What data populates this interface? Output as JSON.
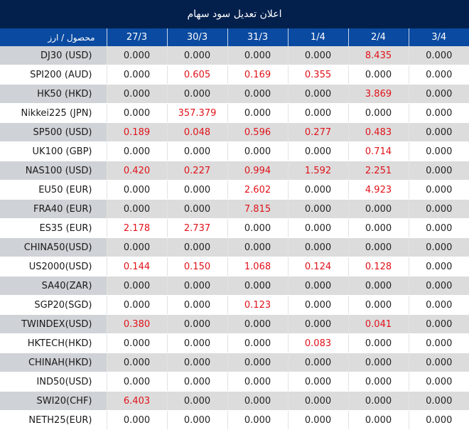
{
  "title": "اعلان تعدیل سود سهام",
  "colors": {
    "title_bg": "#03204d",
    "header_bg": "#0a4aa0",
    "highlight": "#e0121a"
  },
  "columns": [
    "محصول / ارز",
    "27/3",
    "30/3",
    "31/3",
    "1/4",
    "2/4",
    "3/4"
  ],
  "rows": [
    {
      "product": "DJ30 (USD)",
      "values": [
        "0.000",
        "0.000",
        "0.000",
        "0.000",
        "8.435",
        "0.000"
      ]
    },
    {
      "product": "SPI200 (AUD)",
      "values": [
        "0.000",
        "0.605",
        "0.169",
        "0.355",
        "0.000",
        "0.000"
      ]
    },
    {
      "product": "HK50 (HKD)",
      "values": [
        "0.000",
        "0.000",
        "0.000",
        "0.000",
        "3.869",
        "0.000"
      ]
    },
    {
      "product": "Nikkei225 (JPN)",
      "values": [
        "0.000",
        "357.379",
        "0.000",
        "0.000",
        "0.000",
        "0.000"
      ]
    },
    {
      "product": "SP500 (USD)",
      "values": [
        "0.189",
        "0.048",
        "0.596",
        "0.277",
        "0.483",
        "0.000"
      ]
    },
    {
      "product": "UK100 (GBP)",
      "values": [
        "0.000",
        "0.000",
        "0.000",
        "0.000",
        "0.714",
        "0.000"
      ]
    },
    {
      "product": "NAS100 (USD)",
      "values": [
        "0.420",
        "0.227",
        "0.994",
        "1.592",
        "2.251",
        "0.000"
      ]
    },
    {
      "product": "EU50 (EUR)",
      "values": [
        "0.000",
        "0.000",
        "2.602",
        "0.000",
        "4.923",
        "0.000"
      ]
    },
    {
      "product": "FRA40 (EUR)",
      "values": [
        "0.000",
        "0.000",
        "7.815",
        "0.000",
        "0.000",
        "0.000"
      ]
    },
    {
      "product": "ES35 (EUR)",
      "values": [
        "2.178",
        "2.737",
        "0.000",
        "0.000",
        "0.000",
        "0.000"
      ]
    },
    {
      "product": "CHINA50(USD)",
      "values": [
        "0.000",
        "0.000",
        "0.000",
        "0.000",
        "0.000",
        "0.000"
      ]
    },
    {
      "product": "US2000(USD)",
      "values": [
        "0.144",
        "0.150",
        "1.068",
        "0.124",
        "0.128",
        "0.000"
      ]
    },
    {
      "product": "SA40(ZAR)",
      "values": [
        "0.000",
        "0.000",
        "0.000",
        "0.000",
        "0.000",
        "0.000"
      ]
    },
    {
      "product": "SGP20(SGD)",
      "values": [
        "0.000",
        "0.000",
        "0.123",
        "0.000",
        "0.000",
        "0.000"
      ]
    },
    {
      "product": "TWINDEX(USD)",
      "values": [
        "0.380",
        "0.000",
        "0.000",
        "0.000",
        "0.041",
        "0.000"
      ]
    },
    {
      "product": "HKTECH(HKD)",
      "values": [
        "0.000",
        "0.000",
        "0.000",
        "0.083",
        "0.000",
        "0.000"
      ]
    },
    {
      "product": "CHINAH(HKD)",
      "values": [
        "0.000",
        "0.000",
        "0.000",
        "0.000",
        "0.000",
        "0.000"
      ]
    },
    {
      "product": "IND50(USD)",
      "values": [
        "0.000",
        "0.000",
        "0.000",
        "0.000",
        "0.000",
        "0.000"
      ]
    },
    {
      "product": "SWI20(CHF)",
      "values": [
        "6.403",
        "0.000",
        "0.000",
        "0.000",
        "0.000",
        "0.000"
      ]
    },
    {
      "product": "NETH25(EUR)",
      "values": [
        "0.000",
        "0.000",
        "0.000",
        "0.000",
        "0.000",
        "0.000"
      ]
    }
  ]
}
